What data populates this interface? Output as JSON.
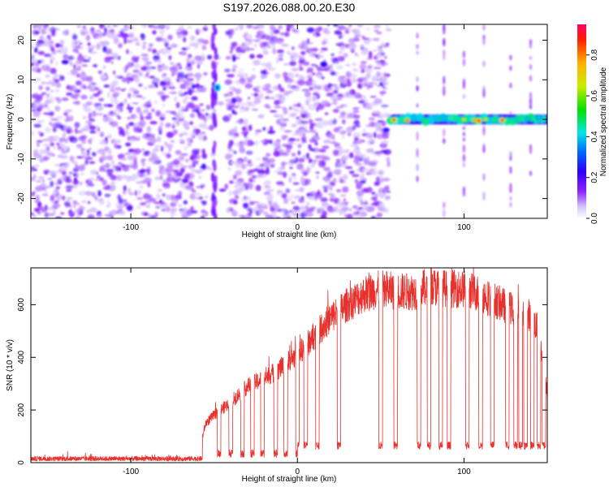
{
  "page": {
    "title": "S197.2026.088.00.20.E30"
  },
  "chart_data": [
    {
      "type": "heatmap",
      "title": "S197.2026.088.00.20.E30",
      "xlabel": "Height of straight line (km)",
      "ylabel": "Frequency (Hz)",
      "xlim": [
        -160,
        150
      ],
      "ylim": [
        -25,
        24
      ],
      "xticks": [
        -100,
        0,
        100
      ],
      "yticks": [
        -20,
        -10,
        0,
        10,
        20
      ],
      "colorbar": {
        "label": "Normalized spectral amplitude",
        "range": [
          0.0,
          0.95
        ],
        "ticks": [
          0.0,
          0.2,
          0.4,
          0.6,
          0.8
        ]
      },
      "features": [
        {
          "name": "broadband noise",
          "x_range": [
            -160,
            55
          ],
          "frequency_range": [
            -25,
            24
          ]
        },
        {
          "name": "narrow vertical feature",
          "x_range": [
            -55,
            -42
          ],
          "frequency_range": [
            -25,
            24
          ],
          "peak_freq": 8,
          "peak_amp": 0.3
        },
        {
          "name": "signal band near 0 Hz",
          "x_range": [
            55,
            150
          ],
          "frequency": 0,
          "peak_amp": 0.95
        }
      ]
    },
    {
      "type": "line",
      "xlabel": "Height of straight line (km)",
      "ylabel": "SNR (10 * v/v)",
      "xlim": [
        -160,
        150
      ],
      "ylim": [
        0,
        740
      ],
      "xticks": [
        -100,
        0,
        100
      ],
      "yticks": [
        0,
        200,
        400,
        600
      ],
      "series": [
        {
          "name": "SNR",
          "color": "#e8302c",
          "envelope_x": [
            -160,
            -60,
            -55,
            -50,
            -40,
            -30,
            -20,
            -10,
            0,
            10,
            20,
            30,
            40,
            50,
            60,
            70,
            80,
            90,
            100,
            110,
            120,
            130,
            140,
            145,
            150
          ],
          "envelope_y": [
            15,
            18,
            150,
            180,
            230,
            290,
            320,
            360,
            410,
            480,
            550,
            600,
            640,
            660,
            650,
            650,
            670,
            660,
            660,
            640,
            610,
            580,
            560,
            500,
            260
          ],
          "dropouts": [
            -47,
            -40,
            -33,
            -27,
            -21,
            -13,
            -7,
            0,
            5,
            12,
            25,
            50,
            59,
            73,
            79,
            86,
            91,
            102,
            110,
            117,
            126,
            131,
            134,
            137,
            141,
            145,
            148
          ]
        }
      ]
    }
  ]
}
